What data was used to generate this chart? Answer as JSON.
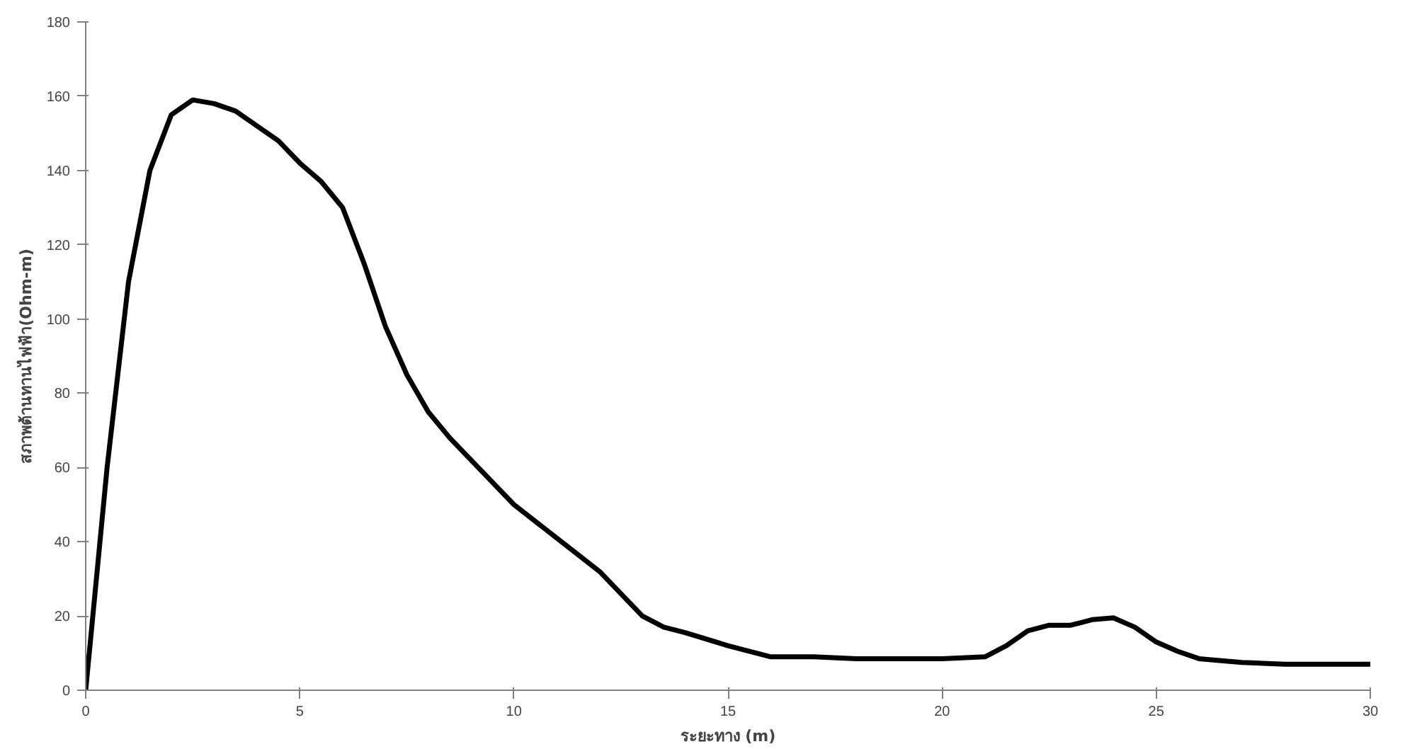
{
  "chart_data": {
    "type": "line",
    "xlabel": "ระยะทาง (m)",
    "ylabel": "สภาพต้านทานไฟฟ้า(Ohm-m)",
    "x": [
      0,
      0.5,
      1,
      1.5,
      2,
      2.5,
      3,
      3.5,
      4,
      4.5,
      5,
      5.5,
      6,
      6.5,
      7,
      7.5,
      8,
      8.5,
      9,
      10,
      11,
      12,
      12.5,
      13,
      13.5,
      14,
      15,
      16,
      17,
      18,
      19,
      20,
      21,
      21.5,
      22,
      22.5,
      23,
      23.5,
      24,
      24.5,
      25,
      25.5,
      26,
      27,
      28,
      29,
      30
    ],
    "series": [
      {
        "color": "#000000",
        "values": [
          0,
          60,
          110,
          140,
          155,
          159,
          158,
          156,
          152,
          148,
          142,
          137,
          130,
          115,
          98,
          85,
          75,
          68,
          62,
          50,
          41,
          32,
          26,
          20,
          17,
          15.5,
          12,
          9,
          9,
          8.5,
          8.5,
          8.5,
          9,
          12,
          16,
          17.5,
          17.5,
          19,
          19.5,
          17,
          13,
          10.5,
          8.5,
          7.5,
          7,
          7,
          7
        ]
      }
    ],
    "xlim": [
      0,
      30
    ],
    "xticks": [
      0,
      5,
      10,
      15,
      20,
      25,
      30
    ],
    "ylim": [
      0,
      180
    ],
    "yticks": [
      0,
      20,
      40,
      60,
      80,
      100,
      120,
      140,
      160,
      180
    ],
    "grid": false,
    "marker": "none",
    "line_style": "solid"
  }
}
